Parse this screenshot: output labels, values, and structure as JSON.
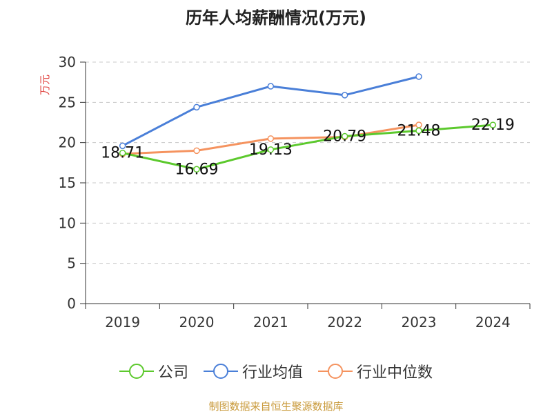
{
  "chart_data": {
    "type": "line",
    "title": "历年人均薪酬情况(万元)",
    "ylabel": "万元",
    "xlabel": "",
    "categories": [
      "2019",
      "2020",
      "2021",
      "2022",
      "2023",
      "2024"
    ],
    "ylim": [
      0,
      30
    ],
    "yticks": [
      0,
      5,
      10,
      15,
      20,
      25,
      30
    ],
    "grid": true,
    "legend_position": "bottom",
    "series": [
      {
        "name": "公司",
        "color": "#5cc92d",
        "values": [
          18.71,
          16.69,
          19.13,
          20.79,
          21.48,
          22.19
        ],
        "labels": [
          "18.71",
          "16.69",
          "19.13",
          "20.79",
          "21.48",
          "22.19"
        ]
      },
      {
        "name": "行业均值",
        "color": "#4a7fd8",
        "values": [
          19.6,
          24.4,
          27.0,
          25.9,
          28.2,
          null
        ]
      },
      {
        "name": "行业中位数",
        "color": "#f5935f",
        "values": [
          18.6,
          19.0,
          20.5,
          20.7,
          22.2,
          null
        ]
      }
    ]
  },
  "source_note": "制图数据来自恒生聚源数据库"
}
